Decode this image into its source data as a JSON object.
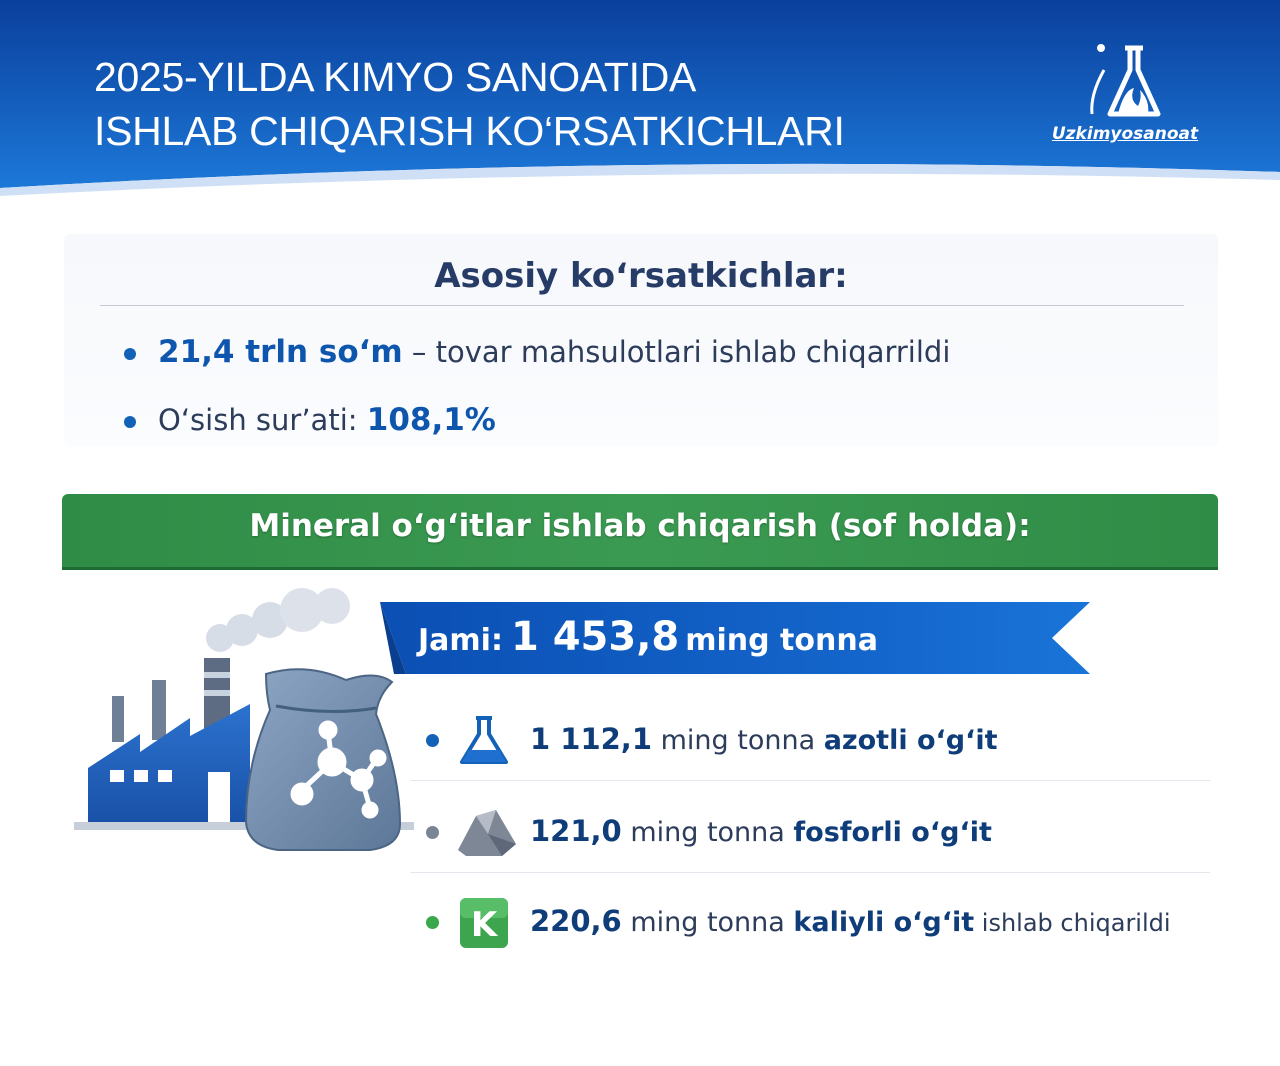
{
  "header": {
    "title_line1": "2025-YILDA KIMYO SANOATIDA",
    "title_line2": "ISHLAB CHIQARISH KO‘RSATKICHLARI",
    "logo_text": "Uzkimyosanoat",
    "colors": {
      "top": "#0a3f9c",
      "bottom": "#1d78d8"
    }
  },
  "key_indicators": {
    "title": "Asosiy ko‘rsatkichlar:",
    "lines": [
      {
        "value": "21,4 trln so‘m",
        "text": " – tovar mahsulotlari ishlab chiqarrildi"
      },
      {
        "label": "O‘sish sur’ati: ",
        "value": "108,1%"
      }
    ]
  },
  "fertilizers": {
    "banner": "Mineral o‘g‘itlar ishlab chiqarish (sof holda):",
    "total": {
      "label": "Jami:",
      "value": "1 453,8",
      "unit": "ming tonna"
    },
    "items": [
      {
        "icon": "flask-icon",
        "dot_color": "#1462b8",
        "value": "1 112,1",
        "unit": " ming tonna ",
        "name": "azotli o‘g‘it",
        "suffix": ""
      },
      {
        "icon": "rock-icon",
        "dot_color": "#7a8494",
        "value": "121,0",
        "unit": " ming tonna ",
        "name": "fosforli o‘g‘it",
        "suffix": ""
      },
      {
        "icon": "potassium-k-icon",
        "icon_letter": "K",
        "dot_color": "#3aa84a",
        "value": "220,6",
        "unit": " ming tonna ",
        "name": "kaliyli o‘g‘it",
        "suffix": " ishlab chiqarildi"
      }
    ]
  }
}
